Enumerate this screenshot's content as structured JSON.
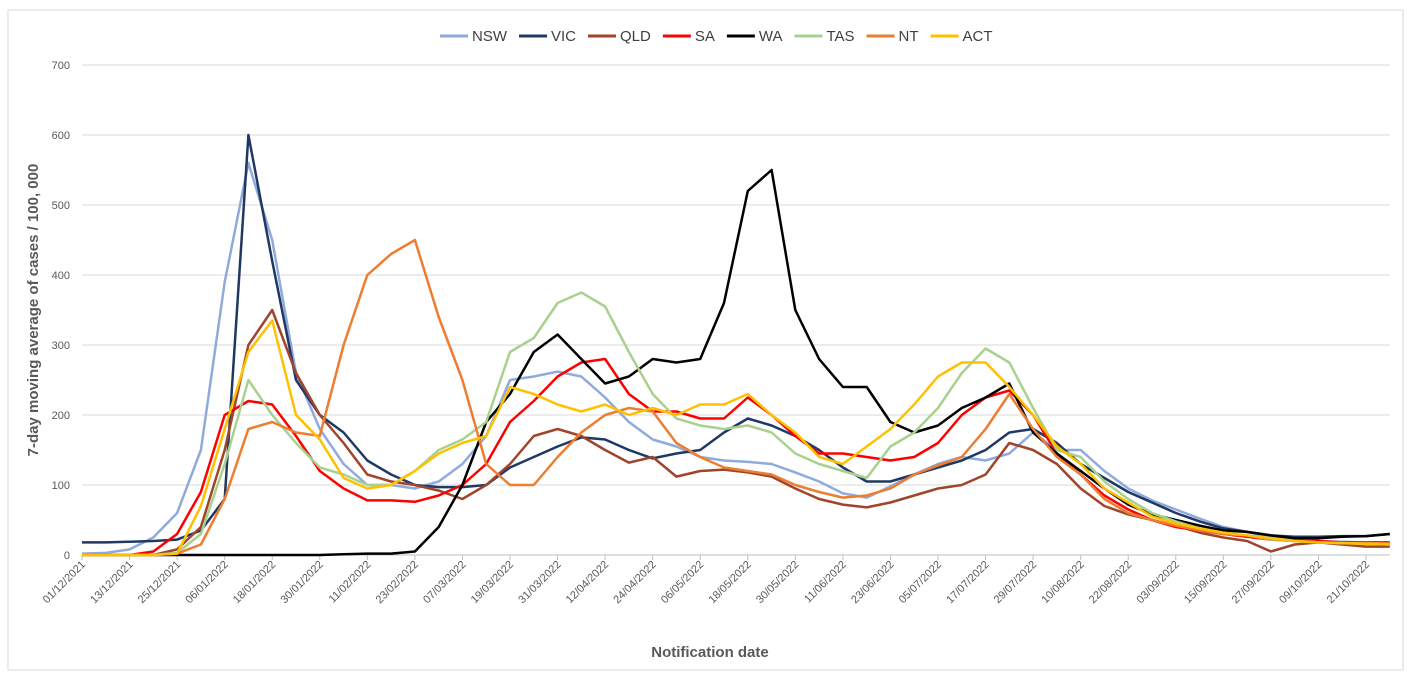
{
  "chart_data": {
    "type": "line",
    "x_label": "Notification date",
    "y_label": "7-day moving average of cases / 100, 000",
    "categories": [
      "01/12/2021",
      null,
      "13/12/2021",
      null,
      "25/12/2021",
      null,
      "06/01/2022",
      null,
      "18/01/2022",
      null,
      "30/01/2022",
      null,
      "11/02/2022",
      null,
      "23/02/2022",
      null,
      "07/03/2022",
      null,
      "19/03/2022",
      null,
      "31/03/2022",
      null,
      "12/04/2022",
      null,
      "24/04/2022",
      null,
      "06/05/2022",
      null,
      "18/05/2022",
      null,
      "30/05/2022",
      null,
      "11/06/2022",
      null,
      "23/06/2022",
      null,
      "05/07/2022",
      null,
      "17/07/2022",
      null,
      "29/07/2022",
      null,
      "10/08/2022",
      null,
      "22/08/2022",
      null,
      "03/09/2022",
      null,
      "15/09/2022",
      null,
      "27/09/2022",
      null,
      "09/10/2022",
      null,
      "21/10/2022",
      null
    ],
    "ylim": [
      0,
      700
    ],
    "yticks": [
      0,
      100,
      200,
      300,
      400,
      500,
      600,
      700
    ],
    "grid": true,
    "legend": "top",
    "series": [
      {
        "name": "NSW",
        "color": "#8faadc",
        "values": [
          2,
          3,
          8,
          25,
          60,
          150,
          390,
          560,
          450,
          260,
          180,
          130,
          100,
          100,
          95,
          105,
          130,
          170,
          250,
          255,
          262,
          255,
          225,
          190,
          165,
          155,
          140,
          135,
          133,
          130,
          118,
          105,
          88,
          82,
          98,
          115,
          130,
          140,
          135,
          145,
          175,
          150,
          150,
          120,
          95,
          78,
          65,
          52,
          40,
          33,
          25,
          22,
          20,
          19,
          18,
          17
        ]
      },
      {
        "name": "VIC",
        "color": "#1f3864",
        "values": [
          18,
          18,
          19,
          20,
          22,
          35,
          80,
          600,
          420,
          250,
          200,
          175,
          135,
          115,
          100,
          97,
          97,
          100,
          125,
          140,
          155,
          168,
          165,
          150,
          138,
          145,
          150,
          175,
          195,
          185,
          170,
          150,
          125,
          105,
          105,
          115,
          125,
          135,
          150,
          175,
          180,
          160,
          130,
          110,
          90,
          75,
          60,
          48,
          38,
          33,
          28,
          26,
          26,
          27,
          27,
          30
        ]
      },
      {
        "name": "QLD",
        "color": "#a0442a",
        "values": [
          0,
          0,
          0,
          0,
          8,
          40,
          150,
          300,
          350,
          260,
          200,
          160,
          115,
          105,
          100,
          92,
          80,
          100,
          130,
          170,
          180,
          170,
          150,
          132,
          140,
          112,
          120,
          122,
          118,
          112,
          95,
          80,
          72,
          68,
          75,
          85,
          95,
          100,
          115,
          160,
          150,
          130,
          95,
          70,
          58,
          50,
          42,
          32,
          25,
          20,
          5,
          15,
          18,
          15,
          12,
          12
        ]
      },
      {
        "name": "SA",
        "color": "#ff0000",
        "values": [
          0,
          0,
          0,
          5,
          30,
          90,
          200,
          220,
          215,
          170,
          120,
          95,
          78,
          78,
          76,
          85,
          100,
          130,
          190,
          220,
          255,
          275,
          280,
          230,
          205,
          205,
          195,
          195,
          225,
          200,
          170,
          145,
          145,
          140,
          135,
          140,
          160,
          200,
          225,
          235,
          200,
          145,
          115,
          85,
          65,
          50,
          40,
          35,
          30,
          26,
          22,
          20,
          20,
          18,
          18,
          18
        ]
      },
      {
        "name": "WA",
        "color": "#000000",
        "values": [
          0,
          0,
          0,
          0,
          0,
          0,
          0,
          0,
          0,
          0,
          0,
          1,
          2,
          2,
          5,
          40,
          100,
          190,
          230,
          290,
          315,
          280,
          245,
          255,
          280,
          275,
          280,
          360,
          520,
          550,
          350,
          280,
          240,
          240,
          190,
          175,
          185,
          210,
          225,
          245,
          175,
          145,
          120,
          95,
          72,
          58,
          50,
          42,
          35,
          33,
          28,
          24,
          24,
          26,
          27,
          30
        ]
      },
      {
        "name": "TAS",
        "color": "#a9d18e",
        "values": [
          0,
          0,
          0,
          0,
          3,
          30,
          130,
          250,
          200,
          160,
          125,
          115,
          100,
          100,
          120,
          150,
          165,
          190,
          290,
          310,
          360,
          375,
          355,
          290,
          230,
          195,
          185,
          180,
          185,
          175,
          145,
          130,
          120,
          110,
          155,
          175,
          210,
          260,
          295,
          275,
          210,
          150,
          140,
          105,
          80,
          60,
          48,
          38,
          30,
          28,
          22,
          20,
          18,
          17,
          16,
          15
        ]
      },
      {
        "name": "NT",
        "color": "#ed7d31",
        "values": [
          0,
          0,
          0,
          0,
          2,
          15,
          80,
          180,
          190,
          175,
          170,
          300,
          400,
          430,
          450,
          340,
          250,
          130,
          100,
          100,
          140,
          175,
          200,
          210,
          205,
          160,
          140,
          125,
          120,
          115,
          100,
          90,
          82,
          85,
          95,
          115,
          128,
          140,
          180,
          230,
          180,
          140,
          115,
          80,
          60,
          50,
          42,
          35,
          30,
          28,
          23,
          20,
          18,
          17,
          17,
          16
        ]
      },
      {
        "name": "ACT",
        "color": "#ffc000",
        "values": [
          0,
          0,
          0,
          0,
          2,
          70,
          180,
          290,
          335,
          200,
          165,
          110,
          95,
          100,
          120,
          145,
          160,
          170,
          240,
          230,
          215,
          205,
          215,
          200,
          210,
          200,
          215,
          215,
          230,
          200,
          175,
          140,
          130,
          155,
          180,
          215,
          255,
          275,
          275,
          240,
          200,
          155,
          130,
          95,
          75,
          55,
          45,
          38,
          32,
          28,
          24,
          20,
          18,
          17,
          16,
          16
        ]
      }
    ]
  }
}
